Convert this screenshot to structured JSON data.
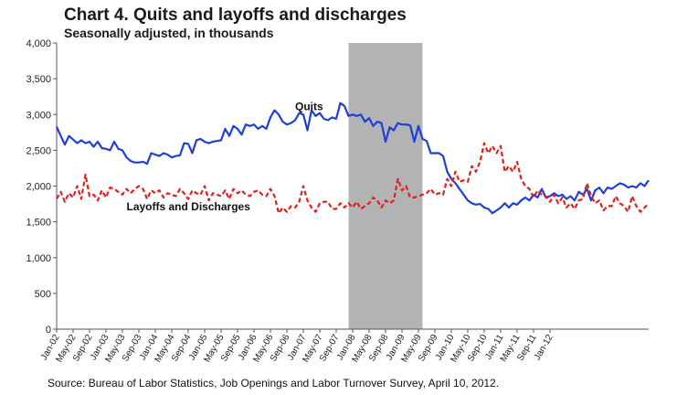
{
  "chart_data": {
    "type": "line",
    "title": "Chart 4. Quits and layoffs and discharges",
    "subtitle": "Seasonally adjusted, in thousands",
    "source": "Source: Bureau of Labor Statistics, Job Openings and Labor Turnover Survey, April 10, 2012.",
    "xlabel": "",
    "ylabel": "",
    "ylim": [
      0,
      4000
    ],
    "yticks": [
      0,
      500,
      1000,
      1500,
      2000,
      2500,
      3000,
      3500,
      4000
    ],
    "ytick_labels": [
      "0",
      "500",
      "1,000",
      "1,500",
      "2,000",
      "2,500",
      "3,000",
      "3,500",
      "4,000"
    ],
    "xticks": [
      "Jan-02",
      "May-02",
      "Sep-02",
      "Jan-03",
      "May-03",
      "Sep-03",
      "Jan-04",
      "May-04",
      "Sep-04",
      "Jan-05",
      "May-05",
      "Sep-05",
      "Jan-06",
      "May-06",
      "Sep-06",
      "Jan-07",
      "May-07",
      "Sep-07",
      "Jan-08",
      "May-08",
      "Sep-08",
      "Jan-09",
      "May-09",
      "Sep-09",
      "Jan-10",
      "May-10",
      "Sep-10",
      "Jan-11",
      "May-11",
      "Sep-11",
      "Jan-12"
    ],
    "x_start": "Jan-02",
    "x_end": "Feb-12",
    "recession": {
      "start": "Dec-07",
      "end": "Jun-09",
      "color": "#b3b3b3"
    },
    "grid": false,
    "series": [
      {
        "name": "Quits",
        "color": "#1f3fd6",
        "style": "solid",
        "values": [
          2830,
          2700,
          2580,
          2700,
          2650,
          2600,
          2640,
          2600,
          2620,
          2550,
          2620,
          2530,
          2520,
          2500,
          2620,
          2520,
          2500,
          2400,
          2350,
          2330,
          2330,
          2340,
          2310,
          2460,
          2440,
          2420,
          2460,
          2440,
          2400,
          2420,
          2430,
          2600,
          2590,
          2460,
          2640,
          2660,
          2620,
          2600,
          2620,
          2630,
          2640,
          2800,
          2700,
          2840,
          2800,
          2720,
          2860,
          2840,
          2860,
          2800,
          2840,
          2800,
          2960,
          3060,
          3000,
          2900,
          2860,
          2880,
          2920,
          3020,
          3000,
          2780,
          3060,
          2980,
          3020,
          2940,
          2920,
          2960,
          2940,
          3160,
          3120,
          2980,
          3000,
          2980,
          3000,
          2900,
          2950,
          2840,
          2900,
          2880,
          2620,
          2820,
          2780,
          2880,
          2860,
          2860,
          2850,
          2620,
          2840,
          2660,
          2630,
          2460,
          2460,
          2460,
          2420,
          2200,
          2100,
          2040,
          1960,
          1880,
          1800,
          1760,
          1740,
          1750,
          1700,
          1680,
          1620,
          1660,
          1700,
          1760,
          1700,
          1760,
          1740,
          1800,
          1840,
          1800,
          1880,
          1840,
          1960,
          1840,
          1860,
          1900,
          1860,
          1880,
          1820,
          1860,
          1800,
          1920,
          1880,
          1960,
          1800,
          1940,
          1980,
          1900,
          1980,
          1960,
          2000,
          2040,
          2020,
          1980,
          2000,
          1980,
          2040,
          2000,
          2080
        ]
      },
      {
        "name": "Layoffs and Discharges",
        "color": "#e02020",
        "style": "dashed",
        "values": [
          1820,
          1920,
          1780,
          1900,
          1840,
          2000,
          1820,
          2160,
          1860,
          1880,
          1800,
          1940,
          1840,
          1980,
          1960,
          1920,
          1880,
          1960,
          1900,
          1960,
          2000,
          1960,
          1820,
          1940,
          1900,
          1940,
          1840,
          1900,
          1880,
          1860,
          1960,
          1900,
          1820,
          1940,
          1900,
          1880,
          2000,
          1800,
          1900,
          1880,
          1860,
          1940,
          1820,
          1960,
          1900,
          1940,
          1880,
          1860,
          1920,
          1940,
          1880,
          1860,
          1960,
          1860,
          1620,
          1700,
          1640,
          1720,
          1700,
          1780,
          2000,
          1800,
          1700,
          1640,
          1760,
          1780,
          1780,
          1680,
          1680,
          1760,
          1700,
          1760,
          1700,
          1780,
          1680,
          1720,
          1760,
          1840,
          1800,
          1700,
          1800,
          1760,
          1800,
          2100,
          1940,
          2000,
          1840,
          1840,
          1860,
          1880,
          1900,
          1960,
          1880,
          1900,
          1880,
          2100,
          2000,
          2200,
          2060,
          2080,
          2060,
          2280,
          2200,
          2340,
          2600,
          2460,
          2560,
          2460,
          2560,
          2200,
          2280,
          2200,
          2340,
          2100,
          2000,
          1960,
          1840,
          1940,
          1880,
          1860,
          1780,
          1880,
          1760,
          1840,
          1700,
          1760,
          1680,
          1800,
          1820,
          2040,
          1860,
          1760,
          1800,
          1660,
          1720,
          1720,
          1860,
          1760,
          1720,
          1640,
          1860,
          1720,
          1640,
          1700,
          1760
        ]
      }
    ],
    "annotations": [
      {
        "text": "Quits",
        "series": "Quits"
      },
      {
        "text": "Layoffs and Discharges",
        "series": "Layoffs and Discharges"
      }
    ]
  }
}
